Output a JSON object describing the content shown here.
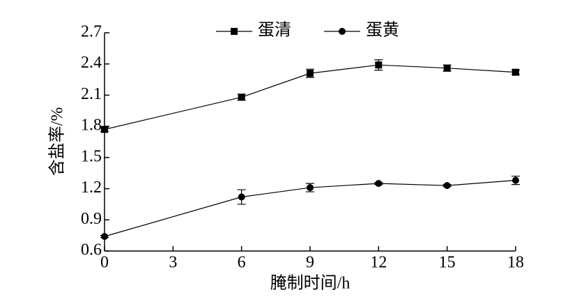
{
  "chart_data": {
    "type": "line",
    "x_label": "腌制时间/h",
    "y_label": "含盐率/%",
    "x": [
      0,
      6,
      9,
      12,
      15,
      18
    ],
    "series": [
      {
        "name": "蛋清",
        "color": "#000000",
        "marker": "square",
        "values": [
          1.77,
          2.08,
          2.31,
          2.39,
          2.36,
          2.32
        ],
        "errors": [
          0.02,
          0.03,
          0.04,
          0.05,
          0.03,
          0.02
        ]
      },
      {
        "name": "蛋黄",
        "color": "#000000",
        "marker": "circle",
        "values": [
          0.74,
          1.12,
          1.21,
          1.25,
          1.23,
          1.28
        ],
        "errors": [
          0.01,
          0.07,
          0.04,
          0.01,
          0.01,
          0.04
        ]
      }
    ],
    "xlim": [
      0,
      18
    ],
    "xticks": [
      0,
      3,
      6,
      9,
      12,
      15,
      18
    ],
    "ylim": [
      0.6,
      2.7
    ],
    "yticks": [
      0.6,
      0.9,
      1.2,
      1.5,
      1.8,
      2.1,
      2.4,
      2.7
    ],
    "legend": "top"
  }
}
